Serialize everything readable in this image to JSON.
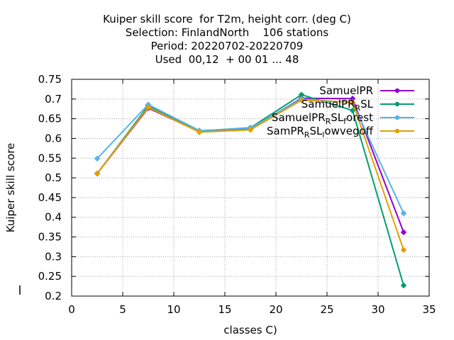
{
  "title_lines": [
    "Kuiper skill score  for T2m, height corr. (deg C)",
    "Selection: FinlandNorth    106 stations",
    "Period: 20220702-20220709",
    "Used  00,12  + 00 01 ... 48"
  ],
  "chart_data": {
    "type": "line",
    "xlabel": "classes C)",
    "ylabel": "Kuiper skill score",
    "xlim": [
      0,
      35
    ],
    "ylim": [
      0.2,
      0.75
    ],
    "xticks": [
      "0",
      "5",
      "10",
      "15",
      "20",
      "25",
      "30",
      "35"
    ],
    "yticks": [
      "0.2",
      "0.25",
      "0.3",
      "0.35",
      "0.4",
      "0.45",
      "0.5",
      "0.55",
      "0.6",
      "0.65",
      "0.7",
      "0.75"
    ],
    "grid": true,
    "legend_position": "top-right",
    "x": [
      2.5,
      7.5,
      12.5,
      17.5,
      22.5,
      27.5,
      32.5
    ],
    "series": [
      {
        "name": "SamuelPR",
        "color": "#9400d3",
        "values": [
          0.511,
          0.677,
          0.617,
          0.624,
          0.702,
          0.701,
          0.362
        ]
      },
      {
        "name": "SamuelPR_RSL",
        "color": "#009e73",
        "values": [
          0.511,
          0.683,
          0.619,
          0.627,
          0.711,
          0.671,
          0.227
        ]
      },
      {
        "name": "SamuelPR_RSL_forest",
        "color": "#56b4e9",
        "values": [
          0.549,
          0.686,
          0.62,
          0.626,
          0.7,
          0.691,
          0.41
        ]
      },
      {
        "name": "SamPR_RSL_lowvegoff",
        "color": "#e69f00",
        "values": [
          0.511,
          0.679,
          0.616,
          0.622,
          0.697,
          0.692,
          0.317
        ]
      }
    ],
    "legend_entries": [
      {
        "base": "SamuelPR",
        "subs": []
      },
      {
        "base": "SamuelPR",
        "subs": [
          "R",
          "SL"
        ]
      },
      {
        "base": "SamuelPR",
        "subs": [
          "R",
          "SL",
          "f",
          "orest"
        ]
      },
      {
        "base": "SamPR",
        "subs": [
          "R",
          "SL",
          "l",
          "owvegoff"
        ]
      }
    ]
  }
}
